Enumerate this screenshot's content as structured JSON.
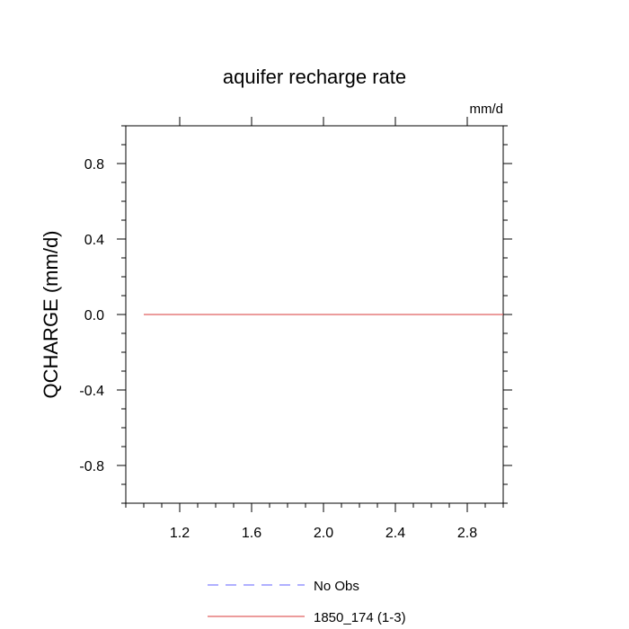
{
  "chart_data": {
    "type": "line",
    "title": "aquifer recharge rate",
    "units_label": "mm/d",
    "xlabel": "",
    "ylabel": "QCHARGE  (mm/d)",
    "xlim": [
      0.9,
      3.0
    ],
    "ylim": [
      -1.0,
      1.0
    ],
    "x_ticks": [
      1.2,
      1.6,
      2.0,
      2.4,
      2.8
    ],
    "x_tick_labels": [
      "1.2",
      "1.6",
      "2.0",
      "2.4",
      "2.8"
    ],
    "y_ticks": [
      -0.8,
      -0.4,
      0.0,
      0.4,
      0.8
    ],
    "y_tick_labels": [
      "-0.8",
      "-0.4",
      "0.0",
      "0.4",
      "0.8"
    ],
    "grid": false,
    "legend_position": "bottom",
    "series": [
      {
        "name": "No Obs",
        "color": "#8080ff",
        "style": "dashed",
        "x": [],
        "y": []
      },
      {
        "name": "1850_174 (1-3)",
        "color": "#e06060",
        "style": "solid",
        "x": [
          1.0,
          2.0,
          3.0
        ],
        "y": [
          0.0,
          0.0,
          0.0
        ]
      }
    ]
  }
}
